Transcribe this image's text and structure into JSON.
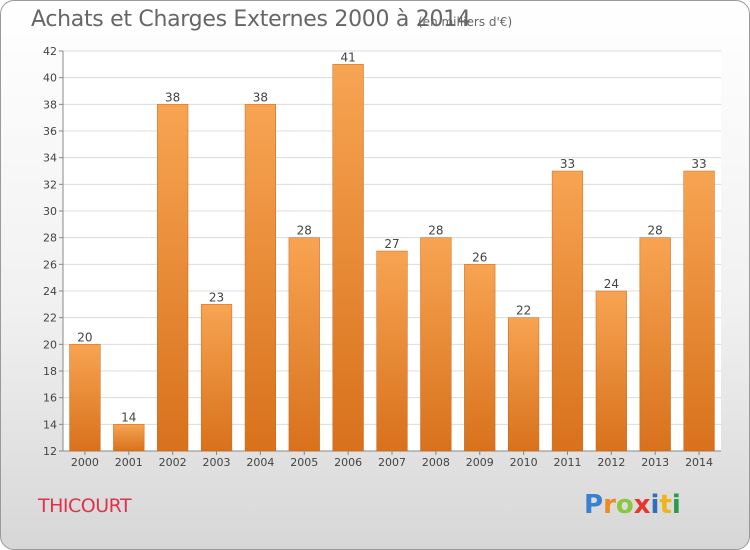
{
  "title": "Achats et Charges Externes 2000 à 2014",
  "subtitle": "(en milliers d'€)",
  "town": "THICOURT",
  "logo": {
    "text": "Proxiti",
    "letters": [
      "P",
      "r",
      "o",
      "x",
      "i",
      "t",
      "i"
    ],
    "colors": [
      "#3b7fd0",
      "#f08a1d",
      "#8cc63f",
      "#e8352c",
      "#2f6fbd",
      "#f0b418",
      "#2b9a4b"
    ]
  },
  "chart_data": {
    "type": "bar",
    "categories": [
      "2000",
      "2001",
      "2002",
      "2003",
      "2004",
      "2005",
      "2006",
      "2007",
      "2008",
      "2009",
      "2010",
      "2011",
      "2012",
      "2013",
      "2014"
    ],
    "values": [
      20,
      14,
      38,
      23,
      38,
      28,
      41,
      27,
      28,
      26,
      22,
      33,
      24,
      28,
      33
    ],
    "ylim": [
      12,
      42
    ],
    "yticks": [
      12,
      14,
      16,
      18,
      20,
      22,
      24,
      26,
      28,
      30,
      32,
      34,
      36,
      38,
      40,
      42
    ],
    "grid": true,
    "bar_color_top": "#f7a452",
    "bar_color_bottom": "#d8711c"
  }
}
